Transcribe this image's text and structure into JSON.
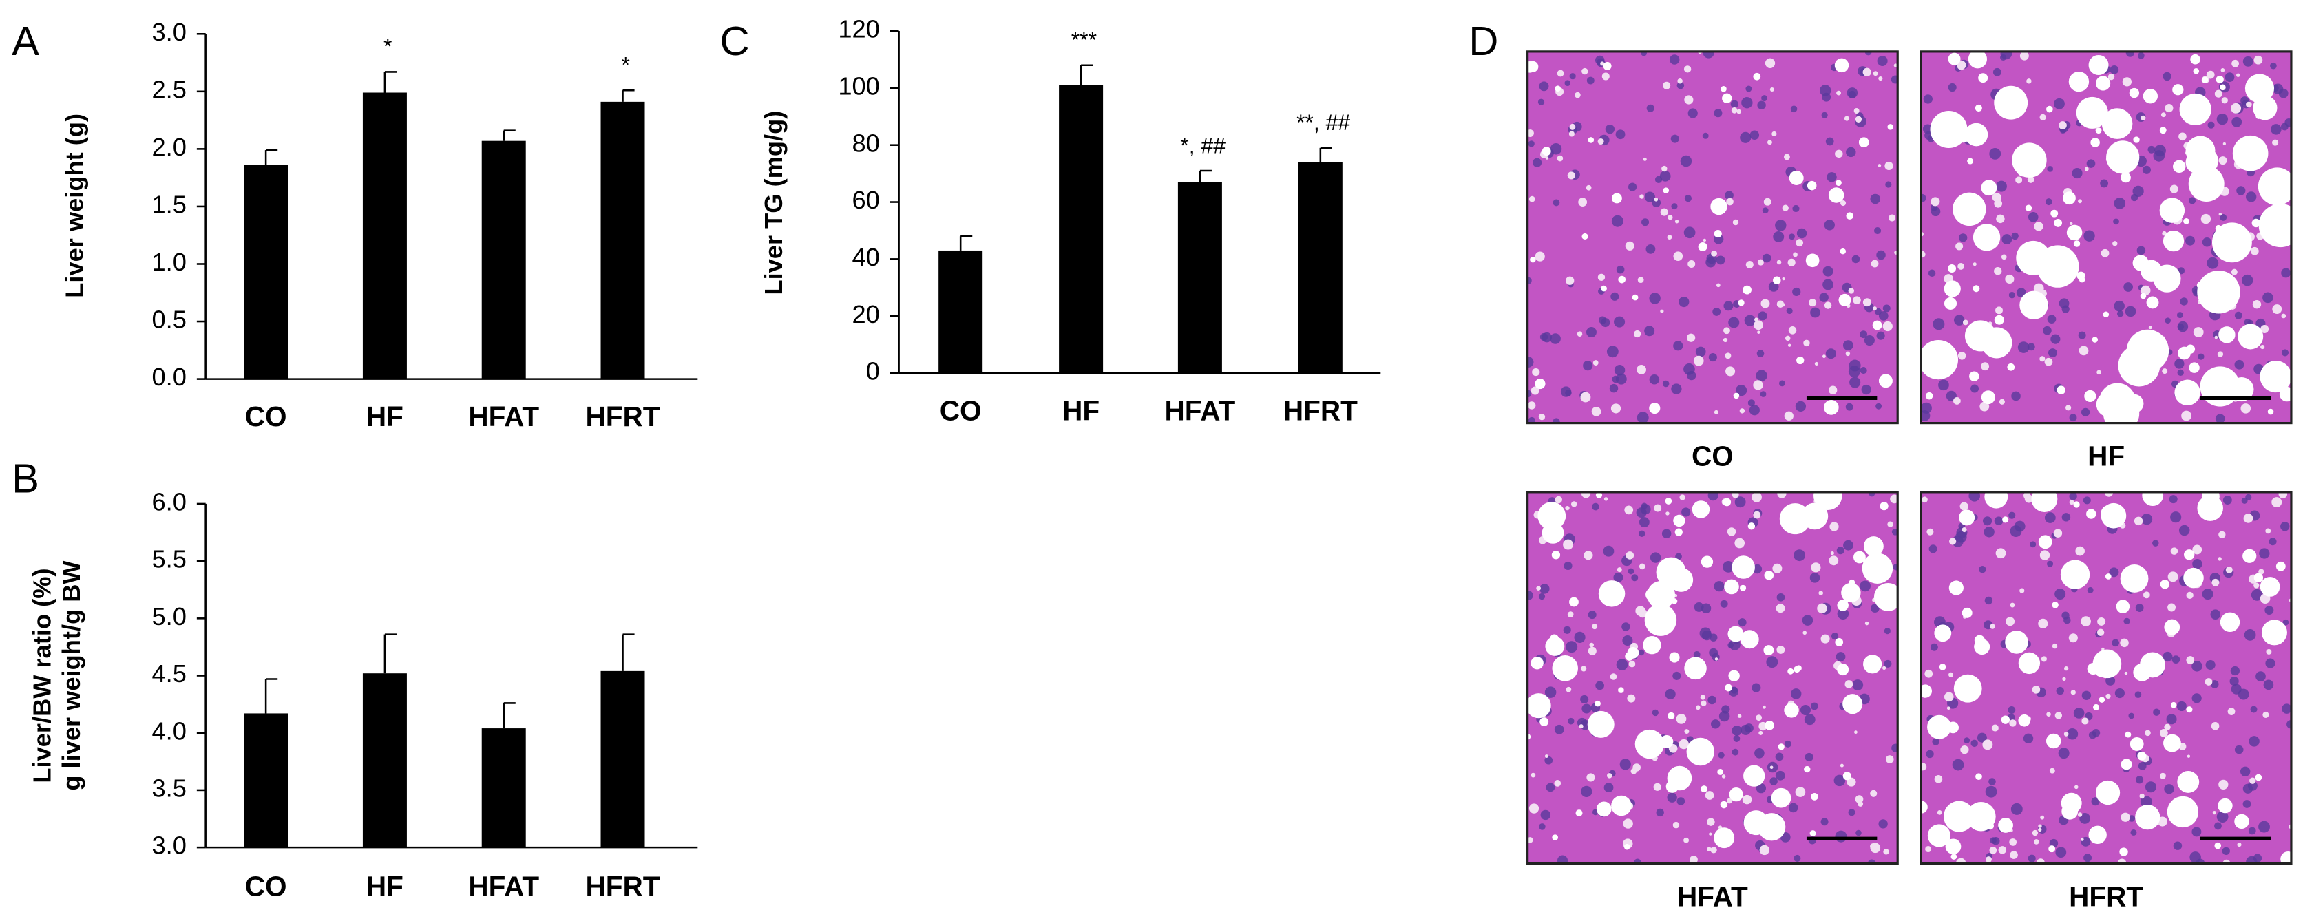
{
  "chart_data": [
    {
      "type": "bar",
      "panel": "A",
      "ylabel": [
        "Liver weight (g)"
      ],
      "categories": [
        "CO",
        "HF",
        "HFAT",
        "HFRT"
      ],
      "values": [
        1.86,
        2.49,
        2.07,
        2.41
      ],
      "errors": [
        0.13,
        0.18,
        0.09,
        0.1
      ],
      "annotations": [
        null,
        "*",
        null,
        "*"
      ],
      "color": "#000000",
      "ylim": [
        0,
        3
      ],
      "yticks": [
        {
          "value": 0,
          "label": "0.0"
        },
        0.5,
        {
          "value": 1,
          "label": "1.0"
        },
        1.5,
        {
          "value": 2,
          "label": "2.0"
        },
        2.5,
        {
          "value": 3,
          "label": "3.0"
        }
      ]
    },
    {
      "type": "bar",
      "panel": "B",
      "ylabel": [
        "Liver/BW ratio (%)",
        "g liver weight/g BW"
      ],
      "categories": [
        "CO",
        "HF",
        "HFAT",
        "HFRT"
      ],
      "values": [
        4.17,
        4.52,
        4.04,
        4.54
      ],
      "errors": [
        0.3,
        0.34,
        0.22,
        0.32
      ],
      "annotations": [
        null,
        null,
        null,
        null
      ],
      "color": "#000000",
      "ylim": [
        3,
        6
      ],
      "yticks": [
        {
          "value": 3,
          "label": "3.0"
        },
        3.5,
        {
          "value": 4,
          "label": "4.0"
        },
        4.5,
        {
          "value": 5,
          "label": "5.0"
        },
        5.5,
        {
          "value": 6,
          "label": "6.0"
        }
      ]
    },
    {
      "type": "bar",
      "panel": "C",
      "ylabel": [
        "Liver TG (mg/g)"
      ],
      "categories": [
        "CO",
        "HF",
        "HFAT",
        "HFRT"
      ],
      "values": [
        43,
        101,
        67,
        74
      ],
      "errors": [
        5,
        7,
        4,
        5
      ],
      "annotations": [
        null,
        "***",
        "*, ##",
        "**, ##"
      ],
      "color": "#000000",
      "ylim": [
        0,
        120
      ],
      "yticks": [
        0,
        20,
        40,
        60,
        80,
        100,
        120
      ]
    }
  ],
  "histology": {
    "panel": "D",
    "labels": [
      "CO",
      "HF",
      "HFAT",
      "HFRT"
    ]
  }
}
